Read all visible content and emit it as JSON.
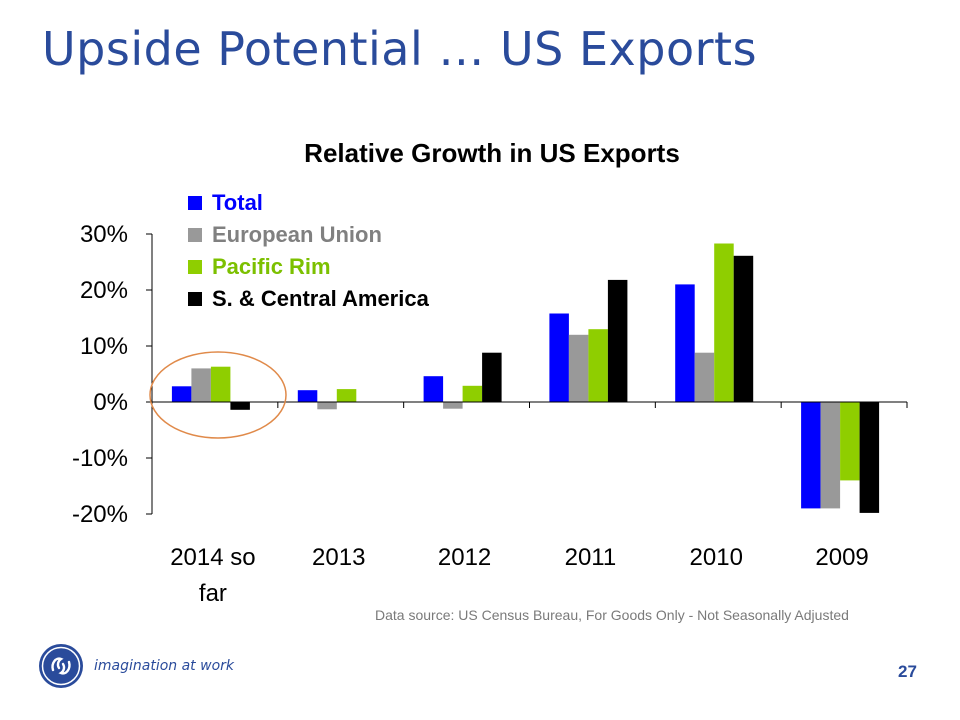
{
  "slide": {
    "title": "Upside Potential … US Exports",
    "page_number": "27",
    "tagline": "imagination at work",
    "source_note": "Data source: US Census Bureau, For Goods Only - Not Seasonally Adjusted"
  },
  "colors": {
    "title": "#2a4b9b",
    "highlight_circle": "#e08a4a"
  },
  "icons": {
    "logo": "ge-monogram-logo"
  },
  "chart_data": {
    "type": "bar",
    "title": "Relative Growth in US Exports",
    "xlabel": "",
    "ylabel": "",
    "ylim": [
      -20,
      30
    ],
    "yticks": [
      30,
      20,
      10,
      0,
      -10,
      -20
    ],
    "ytick_labels": [
      "30%",
      "20%",
      "10%",
      "0%",
      "-10%",
      "-20%"
    ],
    "categories": [
      "2014 so far",
      "2013",
      "2012",
      "2011",
      "2010",
      "2009"
    ],
    "category_label_lines": [
      [
        "2014 so",
        "far"
      ],
      [
        "2013"
      ],
      [
        "2012"
      ],
      [
        "2011"
      ],
      [
        "2010"
      ],
      [
        "2009"
      ]
    ],
    "legend_position": "top-left",
    "grid": false,
    "series": [
      {
        "name": "Total",
        "color": "#0000ff",
        "legend_text_color": "#0000ff",
        "values": [
          2.8,
          2.1,
          4.6,
          15.8,
          21.0,
          -19.0
        ]
      },
      {
        "name": "European Union",
        "color": "#999999",
        "legend_text_color": "#808080",
        "values": [
          6.0,
          -1.3,
          -1.2,
          12.0,
          8.8,
          -19.0
        ]
      },
      {
        "name": "Pacific Rim",
        "color": "#8fce00",
        "legend_text_color": "#7cc000",
        "values": [
          6.3,
          2.3,
          2.9,
          13.0,
          28.3,
          -14.0
        ]
      },
      {
        "name": "S. & Central America",
        "color": "#000000",
        "legend_text_color": "#000000",
        "values": [
          -1.4,
          0,
          8.8,
          21.8,
          26.1,
          -19.8
        ]
      }
    ]
  }
}
